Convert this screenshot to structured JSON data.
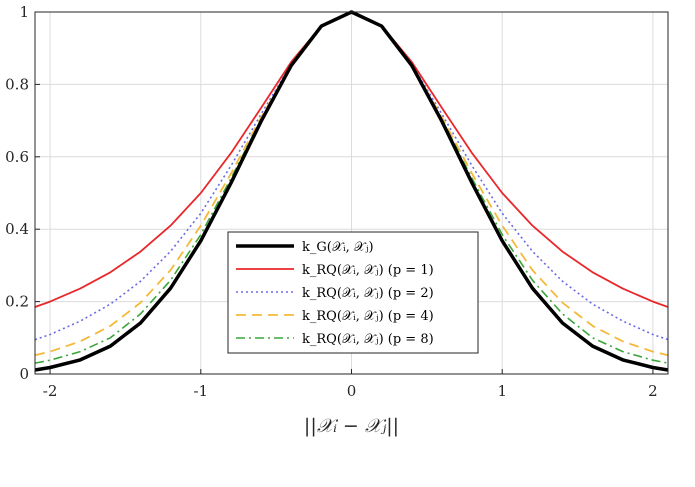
{
  "chart_data": {
    "type": "line",
    "title": "",
    "xlabel": "||𝒳ᵢ − 𝒳ⱼ||",
    "ylabel": "",
    "xlim": [
      -2.1,
      2.1
    ],
    "ylim": [
      0,
      1
    ],
    "grid": true,
    "legend_position": "lower-center",
    "x_ticks": [
      {
        "value": -2,
        "label": "-2"
      },
      {
        "value": -1,
        "label": "-1"
      },
      {
        "value": 0,
        "label": "0"
      },
      {
        "value": 1,
        "label": "1"
      },
      {
        "value": 2,
        "label": "2"
      }
    ],
    "y_ticks": [
      {
        "value": 0,
        "label": "0"
      },
      {
        "value": 0.2,
        "label": "0.2"
      },
      {
        "value": 0.4,
        "label": "0.4"
      },
      {
        "value": 0.6,
        "label": "0.6"
      },
      {
        "value": 0.8,
        "label": "0.8"
      },
      {
        "value": 1,
        "label": "1"
      }
    ],
    "x": [
      -2.1,
      -2.0,
      -1.8,
      -1.6,
      -1.4,
      -1.2,
      -1.0,
      -0.8,
      -0.6,
      -0.4,
      -0.2,
      0.0,
      0.2,
      0.4,
      0.6,
      0.8,
      1.0,
      1.2,
      1.4,
      1.6,
      1.8,
      2.0,
      2.1
    ],
    "series": [
      {
        "name": "k_G(𝒳ᵢ, 𝒳ⱼ)",
        "color": "#000000",
        "dash": "solid",
        "width": 3.5,
        "values": [
          0.011,
          0.018,
          0.039,
          0.077,
          0.141,
          0.237,
          0.368,
          0.527,
          0.698,
          0.852,
          0.961,
          1.0,
          0.961,
          0.852,
          0.698,
          0.527,
          0.368,
          0.237,
          0.141,
          0.077,
          0.039,
          0.018,
          0.011
        ]
      },
      {
        "name": "k_RQ(𝒳ᵢ, 𝒳ⱼ) (p = 1)",
        "color": "#e8282a",
        "dash": "solid",
        "width": 1.8,
        "values": [
          0.185,
          0.2,
          0.236,
          0.281,
          0.338,
          0.41,
          0.5,
          0.61,
          0.735,
          0.862,
          0.962,
          1.0,
          0.962,
          0.862,
          0.735,
          0.61,
          0.5,
          0.41,
          0.338,
          0.281,
          0.236,
          0.2,
          0.185
        ]
      },
      {
        "name": "k_RQ(𝒳ᵢ, 𝒳ⱼ) (p = 2)",
        "color": "#6a6ae6",
        "dash": "dotted",
        "width": 1.6,
        "values": [
          0.095,
          0.109,
          0.146,
          0.193,
          0.256,
          0.339,
          0.444,
          0.575,
          0.718,
          0.856,
          0.961,
          1.0,
          0.961,
          0.856,
          0.718,
          0.575,
          0.444,
          0.339,
          0.256,
          0.193,
          0.146,
          0.109,
          0.095
        ]
      },
      {
        "name": "k_RQ(𝒳ᵢ, 𝒳ⱼ) (p = 4)",
        "color": "#f5b93a",
        "dash": "dashed",
        "width": 1.8,
        "values": [
          0.052,
          0.062,
          0.09,
          0.133,
          0.197,
          0.287,
          0.41,
          0.553,
          0.709,
          0.854,
          0.961,
          1.0,
          0.961,
          0.854,
          0.709,
          0.553,
          0.41,
          0.287,
          0.197,
          0.133,
          0.09,
          0.062,
          0.052
        ]
      },
      {
        "name": "k_RQ(𝒳ᵢ, 𝒳ⱼ) (p = 8)",
        "color": "#3aa63a",
        "dash": "dashdot",
        "width": 1.6,
        "values": [
          0.03,
          0.038,
          0.062,
          0.1,
          0.166,
          0.259,
          0.385,
          0.54,
          0.703,
          0.853,
          0.961,
          1.0,
          0.961,
          0.853,
          0.703,
          0.54,
          0.385,
          0.259,
          0.166,
          0.1,
          0.062,
          0.038,
          0.03
        ]
      }
    ]
  }
}
